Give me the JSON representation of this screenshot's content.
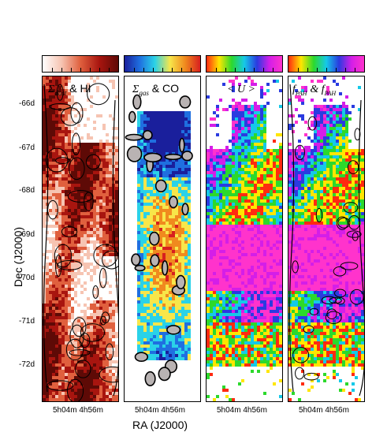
{
  "figure": {
    "ylabel": "Dec (J2000)",
    "xlabel": "RA (J2000)"
  },
  "chart_data": {
    "type": "heatmap",
    "panels": [
      {
        "title_math": "Σ",
        "title_sub": "dust",
        "title_rest": "& HI",
        "colormap": "reds",
        "colors": [
          "#ffffff",
          "#f6c4b2",
          "#e0603e",
          "#a8150f",
          "#5e0a06"
        ]
      },
      {
        "title_math": "Σ",
        "title_sub": "gas",
        "title_rest": "& CO",
        "colormap": "jet",
        "colors": [
          "#1a1f9c",
          "#1f6fe0",
          "#2ad2e8",
          "#f7e64a",
          "#f08a1e",
          "#d71f1f"
        ]
      },
      {
        "title_math": "< U >",
        "title_sub": "",
        "title_rest": "",
        "colormap": "hsv",
        "colors": [
          "#ff2a10",
          "#ffe600",
          "#2cd92c",
          "#15c9e8",
          "#2a3be0",
          "#d41ee8",
          "#ff33cc"
        ]
      },
      {
        "title_math": "f",
        "title_sub": "PAH",
        "title_rest": "& f",
        "title_sub2": "PAH",
        "colormap": "hsv",
        "colors": [
          "#ff2a10",
          "#ffe600",
          "#2cd92c",
          "#15c9e8",
          "#2a3be0",
          "#d41ee8",
          "#ff33cc"
        ]
      }
    ],
    "y_ticks": [
      "-66d",
      "-67d",
      "-68d",
      "-69d",
      "-70d",
      "-71d",
      "-72d"
    ],
    "x_ticks": [
      "5h04m",
      "4h56m"
    ],
    "x_tick_label": "5h04m 4h56m",
    "contours": true
  }
}
